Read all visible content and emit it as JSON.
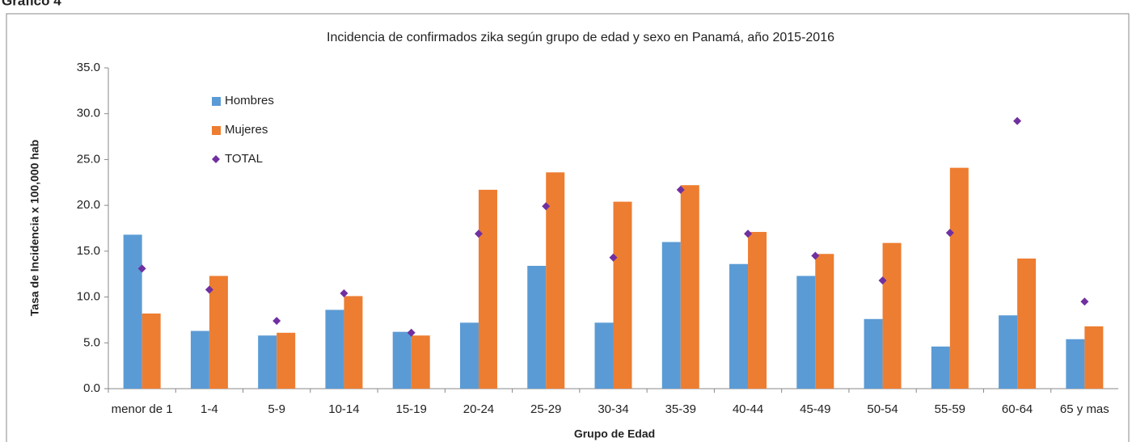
{
  "figure_label": "Gráfico 4",
  "chart_data": {
    "type": "bar",
    "title": "Incidencia de confirmados zika según grupo de edad y sexo en Panamá, año 2015-2016",
    "x_label": "Grupo de Edad",
    "y_label": "Tasa de Incidencia x 100,000 hab",
    "categories": [
      "menor de 1",
      "1-4",
      "5-9",
      "10-14",
      "15-19",
      "20-24",
      "25-29",
      "30-34",
      "35-39",
      "40-44",
      "45-49",
      "50-54",
      "55-59",
      "60-64",
      "65 y mas"
    ],
    "series": [
      {
        "name": "Hombres",
        "color": "#5b9bd5",
        "type": "bar",
        "values": [
          16.8,
          6.3,
          5.8,
          8.6,
          6.2,
          7.2,
          13.4,
          7.2,
          16.0,
          13.6,
          12.3,
          7.6,
          4.6,
          8.0,
          5.4
        ]
      },
      {
        "name": "Mujeres",
        "color": "#ed7d31",
        "type": "bar",
        "values": [
          8.2,
          12.3,
          6.1,
          10.1,
          5.8,
          21.7,
          23.6,
          20.4,
          22.2,
          17.1,
          14.7,
          15.9,
          24.1,
          14.2,
          6.8
        ]
      },
      {
        "name": "TOTAL",
        "color": "#7030a0",
        "type": "scatter",
        "values": [
          13.1,
          10.8,
          7.4,
          10.4,
          6.1,
          16.9,
          19.9,
          14.3,
          21.7,
          16.9,
          14.5,
          11.8,
          17.0,
          29.2,
          9.5
        ]
      }
    ],
    "ylim": [
      0,
      35
    ],
    "yticks": [
      {
        "value": 0,
        "label": "0.0"
      },
      {
        "value": 5,
        "label": "5.0"
      },
      {
        "value": 10,
        "label": "10.0"
      },
      {
        "value": 15,
        "label": "15.0"
      },
      {
        "value": 20,
        "label": "20.0"
      },
      {
        "value": 25,
        "label": "25.0"
      },
      {
        "value": 30,
        "label": "30.0"
      },
      {
        "value": 35,
        "label": "35.0"
      }
    ],
    "grid": false,
    "legend": "upper left"
  }
}
